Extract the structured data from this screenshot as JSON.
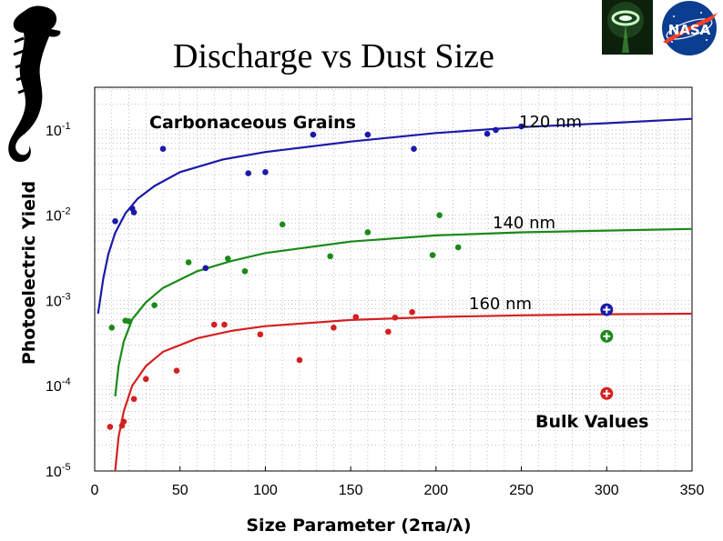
{
  "slide": {
    "title": "Discharge vs Dust Size"
  },
  "logos": {
    "left": "seahorse-logo",
    "right_photo": "glowing-ring-photo",
    "right_agency": "NASA",
    "agency_color": "#0b3d91",
    "agency_accent": "#fc3d21"
  },
  "chart_data": {
    "type": "scatter",
    "title": "",
    "xlabel": "Size Parameter (2πa/λ)",
    "ylabel": "Photoelectric Yield",
    "xlim": [
      0,
      350
    ],
    "ylim_log10": [
      -5,
      -0.5
    ],
    "y_scale": "log",
    "grid": true,
    "x_ticks": [
      "0",
      "50",
      "100",
      "150",
      "200",
      "250",
      "300",
      "350"
    ],
    "y_ticks": [
      {
        "base": "10",
        "exp": "-1"
      },
      {
        "base": "10",
        "exp": "-2"
      },
      {
        "base": "10",
        "exp": "-3"
      },
      {
        "base": "10",
        "exp": "-4"
      },
      {
        "base": "10",
        "exp": "-5"
      }
    ],
    "annotations": {
      "grains": "Carbonaceous Grains",
      "bulk": "Bulk Values"
    },
    "series": [
      {
        "name": "120 nm",
        "color": "#1a1aa8",
        "points": [
          [
            12,
            0.0085
          ],
          [
            22,
            0.012
          ],
          [
            23,
            0.0108
          ],
          [
            40,
            0.06
          ],
          [
            65,
            0.0024
          ],
          [
            90,
            0.031
          ],
          [
            100,
            0.032
          ],
          [
            128,
            0.088
          ],
          [
            160,
            0.088
          ],
          [
            187,
            0.06
          ],
          [
            230,
            0.09
          ],
          [
            235,
            0.1
          ],
          [
            250,
            0.11
          ]
        ],
        "curve": [
          [
            2,
            0.0007
          ],
          [
            5,
            0.0018
          ],
          [
            8,
            0.0035
          ],
          [
            12,
            0.0062
          ],
          [
            18,
            0.0105
          ],
          [
            25,
            0.0155
          ],
          [
            35,
            0.022
          ],
          [
            50,
            0.032
          ],
          [
            75,
            0.045
          ],
          [
            100,
            0.055
          ],
          [
            150,
            0.073
          ],
          [
            200,
            0.092
          ],
          [
            250,
            0.108
          ],
          [
            300,
            0.12
          ],
          [
            350,
            0.135
          ]
        ],
        "bulk": 0.00078
      },
      {
        "name": "140 nm",
        "color": "#1a8a1a",
        "points": [
          [
            10,
            0.00048
          ],
          [
            18,
            0.00058
          ],
          [
            20,
            0.00057
          ],
          [
            35,
            0.00088
          ],
          [
            55,
            0.0028
          ],
          [
            78,
            0.0031
          ],
          [
            88,
            0.0022
          ],
          [
            110,
            0.0078
          ],
          [
            138,
            0.0033
          ],
          [
            160,
            0.0063
          ],
          [
            198,
            0.0034
          ],
          [
            202,
            0.01
          ],
          [
            213,
            0.0042
          ]
        ],
        "curve": [
          [
            12,
            7.5e-05
          ],
          [
            14,
            0.00017
          ],
          [
            17,
            0.00033
          ],
          [
            22,
            0.0006
          ],
          [
            30,
            0.00095
          ],
          [
            40,
            0.0014
          ],
          [
            60,
            0.0022
          ],
          [
            80,
            0.0029
          ],
          [
            100,
            0.0036
          ],
          [
            150,
            0.0049
          ],
          [
            200,
            0.0058
          ],
          [
            250,
            0.0063
          ],
          [
            300,
            0.0066
          ],
          [
            350,
            0.0069
          ]
        ],
        "bulk": 0.00038
      },
      {
        "name": "160 nm",
        "color": "#d42020",
        "points": [
          [
            9,
            3.3e-05
          ],
          [
            16,
            3.4e-05
          ],
          [
            17,
            3.8e-05
          ],
          [
            23,
            7e-05
          ],
          [
            30,
            0.00012
          ],
          [
            48,
            0.00015
          ],
          [
            70,
            0.00052
          ],
          [
            76,
            0.00052
          ],
          [
            97,
            0.0004
          ],
          [
            120,
            0.0002
          ],
          [
            140,
            0.00048
          ],
          [
            153,
            0.00064
          ],
          [
            172,
            0.00043
          ],
          [
            176,
            0.00063
          ],
          [
            186,
            0.00073
          ]
        ],
        "curve": [
          [
            12,
            1e-05
          ],
          [
            14,
            2.5e-05
          ],
          [
            17,
            5e-05
          ],
          [
            22,
            0.0001
          ],
          [
            30,
            0.00017
          ],
          [
            40,
            0.00025
          ],
          [
            60,
            0.00036
          ],
          [
            80,
            0.00044
          ],
          [
            100,
            0.0005
          ],
          [
            150,
            0.00059
          ],
          [
            200,
            0.00064
          ],
          [
            250,
            0.00067
          ],
          [
            300,
            0.00069
          ],
          [
            350,
            0.0007
          ]
        ],
        "bulk": 8.1e-05
      }
    ],
    "bulk_x": 300
  }
}
